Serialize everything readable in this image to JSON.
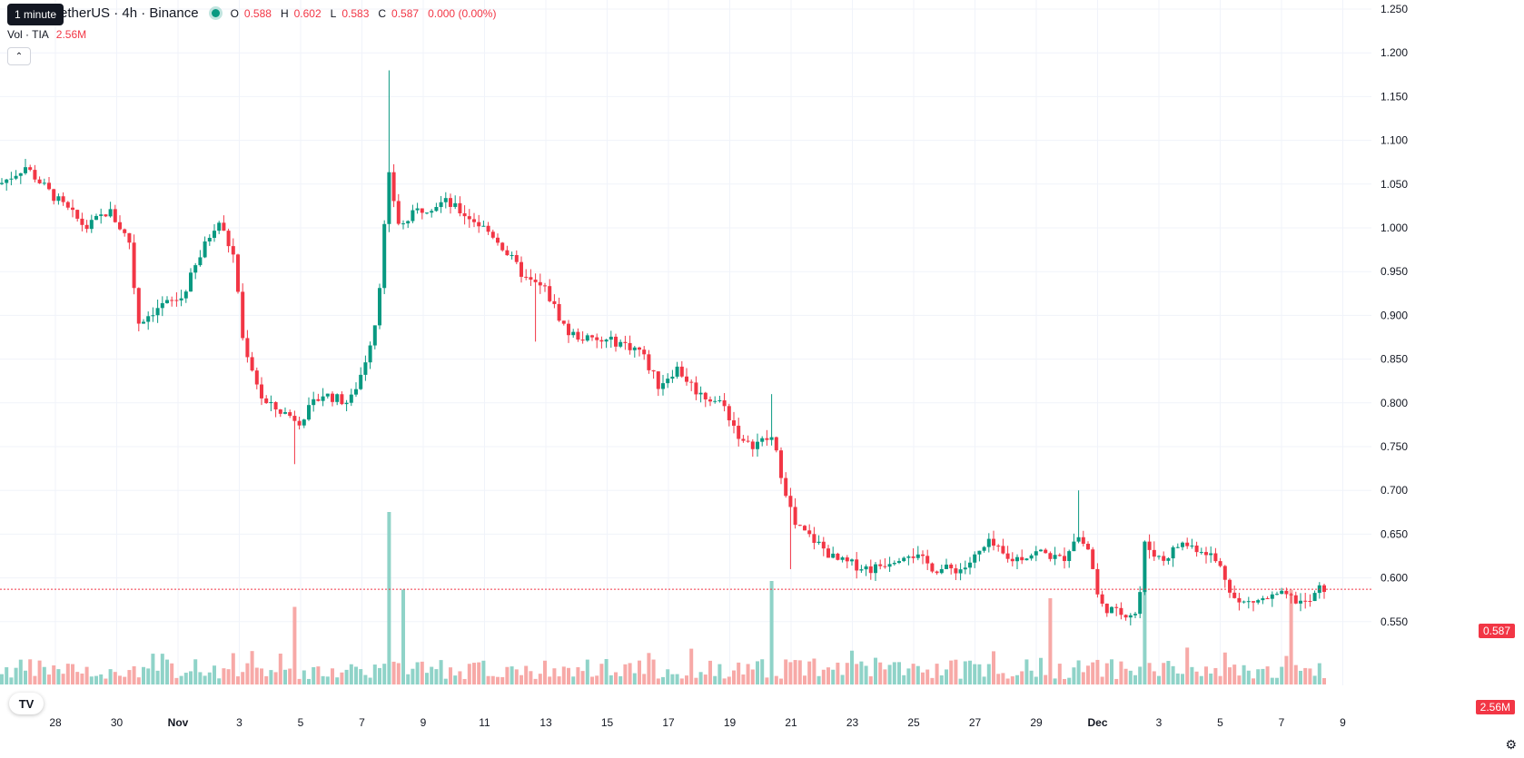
{
  "header": {
    "symbol_text": "etherUS · 4h · Binance",
    "tooltip": "1 minute",
    "ohlc": [
      {
        "k": "O",
        "v": "0.588"
      },
      {
        "k": "H",
        "v": "0.602"
      },
      {
        "k": "L",
        "v": "0.583"
      },
      {
        "k": "C",
        "v": "0.587"
      }
    ],
    "change": "0.000 (0.00%)"
  },
  "volume_legend": {
    "label": "Vol · TIA",
    "value": "2.56M"
  },
  "last_price_tag": "0.587",
  "last_volume_tag": "2.56M",
  "logo_text": "TV",
  "colors": {
    "up": "#089981",
    "down": "#f23645",
    "vol_up": "#8fd3c8",
    "vol_down": "#f7a9a7",
    "grid": "#f0f3fa"
  },
  "chart_data": {
    "type": "candlestick",
    "interval": "4h",
    "y_axis": {
      "ticks": [
        "1.250",
        "1.200",
        "1.150",
        "1.100",
        "1.050",
        "1.000",
        "0.950",
        "0.900",
        "0.850",
        "0.800",
        "0.750",
        "0.700",
        "0.650",
        "0.600",
        "0.550"
      ],
      "range": [
        0.52,
        1.25
      ]
    },
    "x_axis": {
      "ticks": [
        "28",
        "30",
        "Nov",
        "3",
        "5",
        "7",
        "9",
        "11",
        "13",
        "15",
        "17",
        "19",
        "21",
        "23",
        "25",
        "27",
        "29",
        "Dec",
        "3",
        "5",
        "7",
        "9"
      ]
    },
    "last_price": 0.587,
    "volume_last": "2.56M",
    "keyframes": [
      [
        0,
        1.05
      ],
      [
        28,
        1.07
      ],
      [
        55,
        1.04
      ],
      [
        95,
        1.0
      ],
      [
        120,
        1.02
      ],
      [
        145,
        0.98
      ],
      [
        150,
        0.89
      ],
      [
        175,
        0.91
      ],
      [
        200,
        0.92
      ],
      [
        230,
        0.99
      ],
      [
        240,
        1.01
      ],
      [
        260,
        0.96
      ],
      [
        265,
        0.88
      ],
      [
        290,
        0.8
      ],
      [
        310,
        0.79
      ],
      [
        330,
        0.78
      ],
      [
        355,
        0.81
      ],
      [
        385,
        0.8
      ],
      [
        400,
        0.84
      ],
      [
        415,
        0.9
      ],
      [
        428,
        1.06
      ],
      [
        440,
        1.0
      ],
      [
        460,
        1.02
      ],
      [
        490,
        1.03
      ],
      [
        520,
        1.01
      ],
      [
        545,
        0.99
      ],
      [
        580,
        0.94
      ],
      [
        600,
        0.93
      ],
      [
        625,
        0.88
      ],
      [
        655,
        0.87
      ],
      [
        680,
        0.87
      ],
      [
        705,
        0.86
      ],
      [
        725,
        0.82
      ],
      [
        745,
        0.84
      ],
      [
        770,
        0.81
      ],
      [
        795,
        0.8
      ],
      [
        820,
        0.75
      ],
      [
        850,
        0.76
      ],
      [
        875,
        0.66
      ],
      [
        900,
        0.64
      ],
      [
        920,
        0.62
      ],
      [
        960,
        0.61
      ],
      [
        1000,
        0.63
      ],
      [
        1030,
        0.61
      ],
      [
        1060,
        0.61
      ],
      [
        1090,
        0.64
      ],
      [
        1110,
        0.62
      ],
      [
        1145,
        0.63
      ],
      [
        1170,
        0.62
      ],
      [
        1185,
        0.65
      ],
      [
        1200,
        0.63
      ],
      [
        1210,
        0.57
      ],
      [
        1230,
        0.56
      ],
      [
        1254,
        0.56
      ],
      [
        1258,
        0.64
      ],
      [
        1280,
        0.62
      ],
      [
        1300,
        0.64
      ],
      [
        1330,
        0.63
      ],
      [
        1345,
        0.61
      ],
      [
        1362,
        0.57
      ],
      [
        1390,
        0.575
      ],
      [
        1410,
        0.58
      ],
      [
        1425,
        0.575
      ],
      [
        1440,
        0.57
      ],
      [
        1455,
        0.59
      ],
      [
        1460,
        0.587
      ]
    ],
    "spikes": [
      [
        427,
        1.18
      ],
      [
        850,
        0.81
      ],
      [
        872,
        0.61
      ],
      [
        1188,
        0.7
      ],
      [
        1590,
        0.6
      ],
      [
        590,
        0.87
      ],
      [
        325,
        0.73
      ]
    ],
    "volume_spikes": [
      [
        427,
        1.0
      ],
      [
        443,
        0.55
      ],
      [
        850,
        0.6
      ],
      [
        1155,
        0.5
      ],
      [
        1258,
        0.55
      ],
      [
        1424,
        0.55
      ],
      [
        323,
        0.45
      ]
    ]
  }
}
